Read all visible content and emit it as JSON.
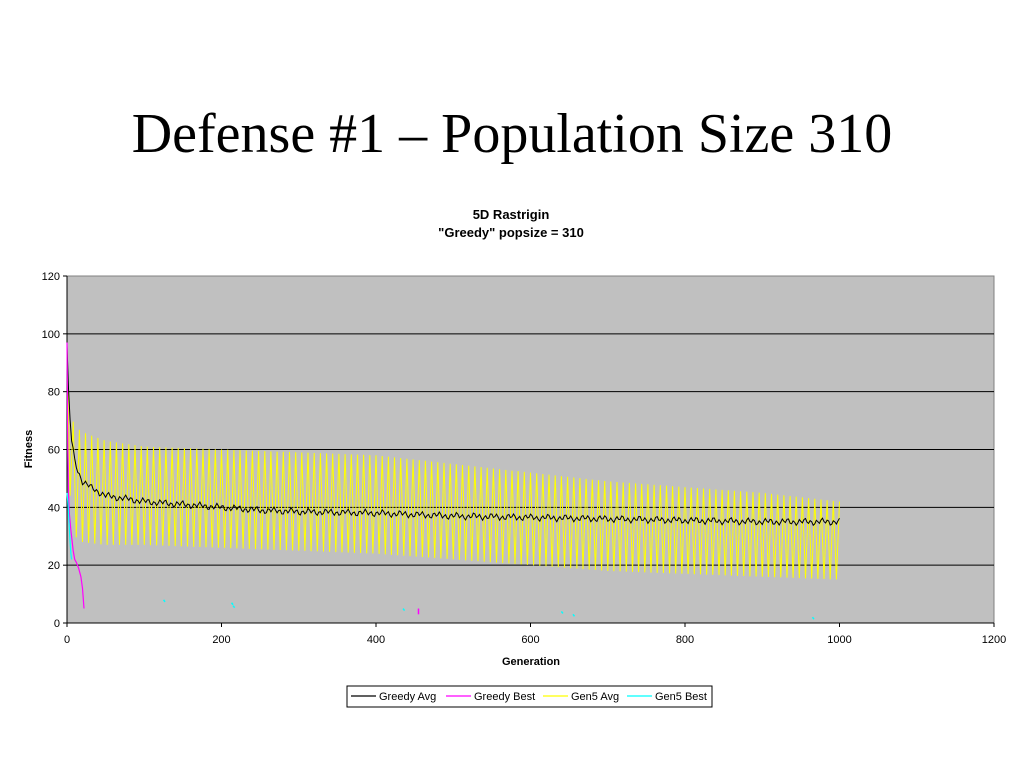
{
  "slide": {
    "title": "Defense #1 – Population Size 310"
  },
  "chart_data": {
    "type": "line",
    "title": "5D Rastrigin",
    "subtitle": "\"Greedy\" popsize = 310",
    "xlabel": "Generation",
    "ylabel": "Fitness",
    "xlim": [
      0,
      1200
    ],
    "ylim": [
      0,
      120
    ],
    "xticks": [
      0,
      200,
      400,
      600,
      800,
      1000,
      1200
    ],
    "yticks": [
      0,
      20,
      40,
      60,
      80,
      100,
      120
    ],
    "grid": "horizontal",
    "plot_background": "#c0c0c0",
    "legend_position": "bottom",
    "series": [
      {
        "name": "Greedy Avg",
        "color": "#000000",
        "x": [
          0,
          2,
          5,
          10,
          15,
          20,
          30,
          50,
          75,
          100,
          150,
          200,
          250,
          300,
          400,
          500,
          600,
          700,
          800,
          900,
          1000
        ],
        "values": [
          96,
          80,
          65,
          56,
          52,
          49,
          47,
          44,
          43,
          42,
          41,
          40,
          39,
          38.5,
          38,
          37,
          36.5,
          36,
          35.5,
          35,
          35
        ]
      },
      {
        "name": "Greedy Best",
        "color": "#ff00ff",
        "x": [
          0,
          1,
          2,
          3,
          5,
          8,
          10,
          12,
          15,
          18,
          20,
          22
        ],
        "values": [
          97,
          60,
          45,
          38,
          32,
          25,
          22,
          21,
          19,
          16,
          12,
          5
        ]
      },
      {
        "name": "Gen5 Avg",
        "color": "#ffff00",
        "band": {
          "x": [
            0,
            5,
            10,
            20,
            50,
            100,
            200,
            300,
            400,
            500,
            600,
            700,
            800,
            900,
            1000
          ],
          "upper": [
            95,
            72,
            68,
            66,
            63,
            61,
            60,
            59,
            58,
            55,
            52,
            49,
            47,
            45,
            42
          ],
          "lower": [
            60,
            40,
            30,
            28,
            27,
            27,
            26,
            25,
            24,
            22,
            20,
            18,
            17,
            16,
            15
          ]
        },
        "period": 8
      },
      {
        "name": "Gen5 Best",
        "color": "#00ffff",
        "x": [
          0,
          1,
          2,
          3,
          4,
          5,
          6
        ],
        "values": [
          45,
          42,
          38,
          33,
          28,
          24,
          22
        ],
        "dots": [
          [
            125,
            8
          ],
          [
            213,
            7
          ],
          [
            215,
            6
          ],
          [
            435,
            5
          ],
          [
            640,
            4
          ],
          [
            655,
            3
          ],
          [
            965,
            2
          ]
        ]
      }
    ]
  }
}
